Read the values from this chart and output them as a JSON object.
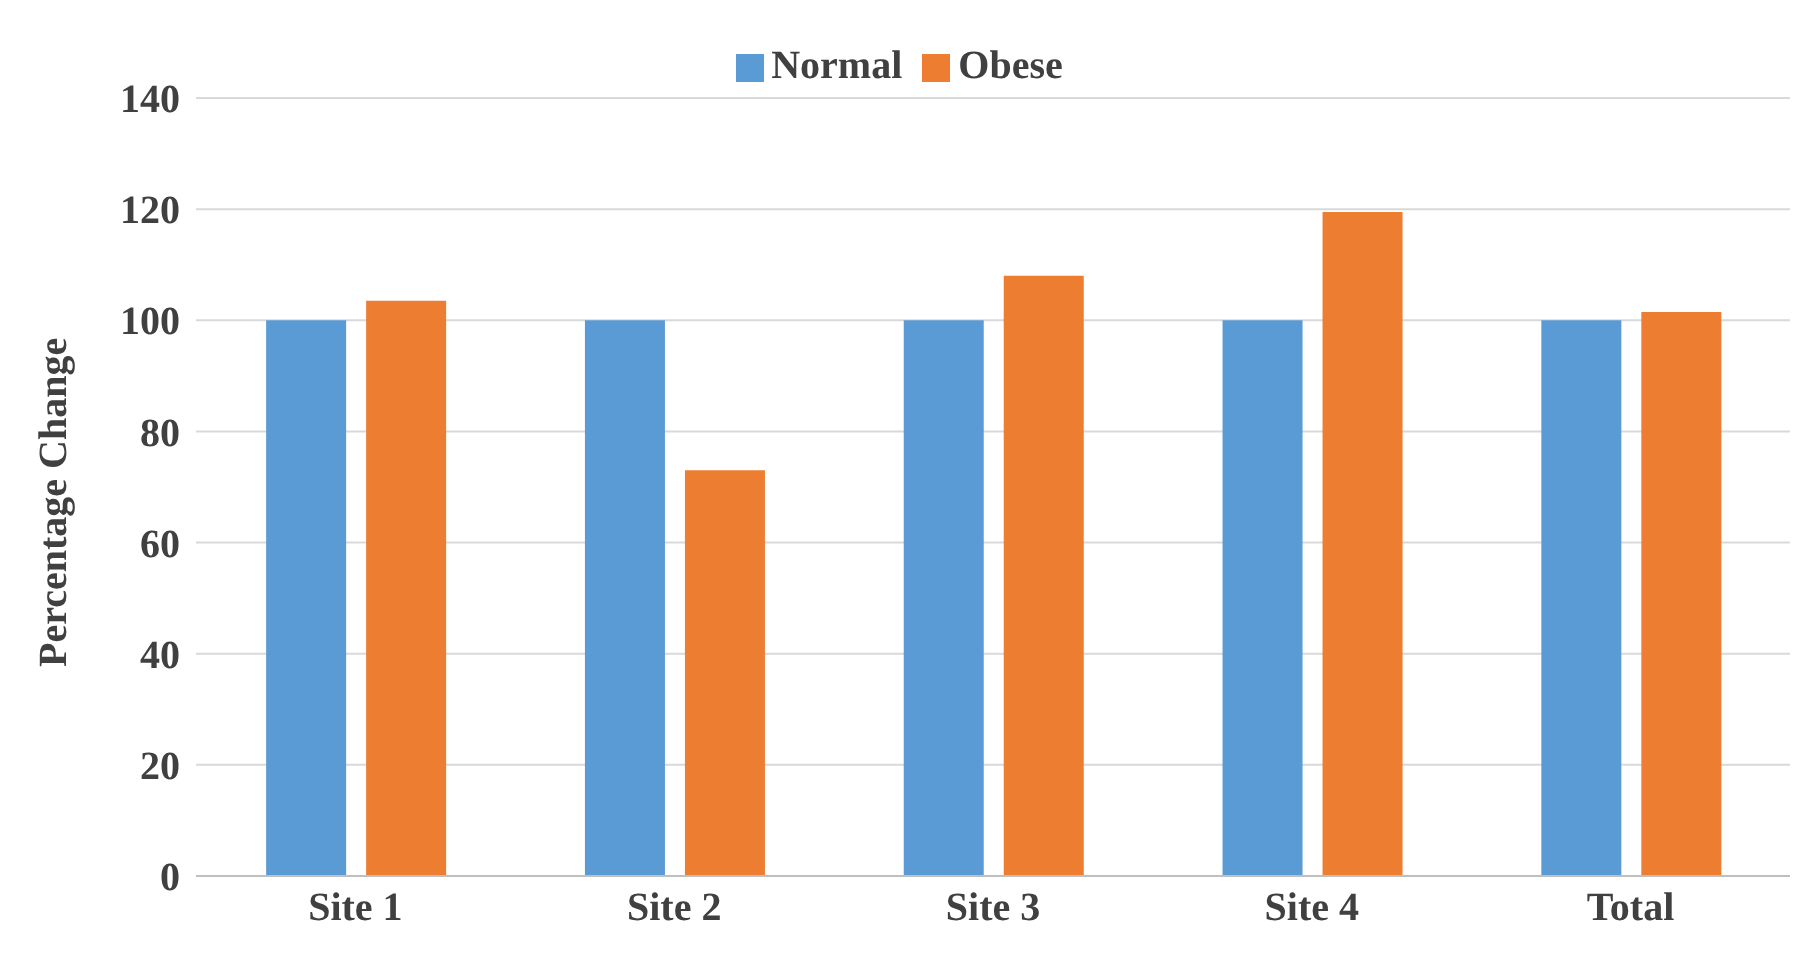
{
  "chart_data": {
    "type": "bar",
    "ylabel": "Percentage Change",
    "categories": [
      "Site 1",
      "Site 2",
      "Site 3",
      "Site 4",
      "Total"
    ],
    "series": [
      {
        "name": "Normal",
        "color": "#5b9bd5",
        "values": [
          100,
          100,
          100,
          100,
          100
        ]
      },
      {
        "name": "Obese",
        "color": "#ed7d31",
        "values": [
          103.5,
          73,
          108,
          119.5,
          101.5
        ]
      }
    ],
    "ylim": [
      0,
      140
    ],
    "yticks": [
      0,
      20,
      40,
      60,
      80,
      100,
      120,
      140
    ],
    "grid": "y",
    "legend": "top"
  }
}
